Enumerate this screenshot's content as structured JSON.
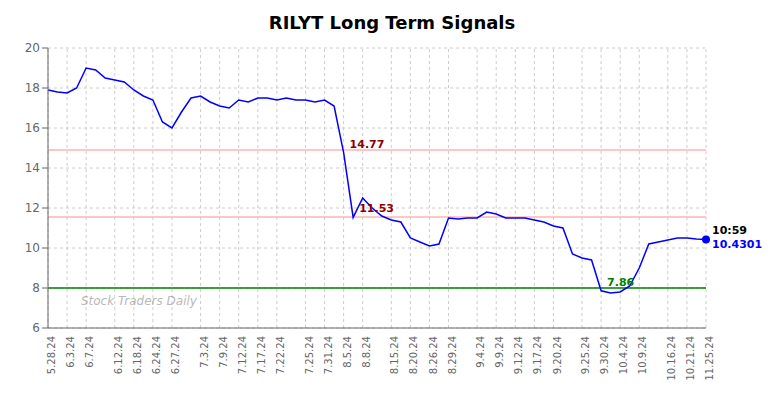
{
  "chart_data": {
    "type": "line",
    "title": "RILYT Long Term Signals",
    "categories": [
      "5.28.24",
      null,
      "6.3.24",
      null,
      "6.7.24",
      null,
      null,
      "6.12.24",
      null,
      "6.18.24",
      null,
      "6.24.24",
      null,
      "6.27.24",
      null,
      null,
      "7.3.24",
      null,
      "7.9.24",
      null,
      "7.12.24",
      null,
      "7.17.24",
      null,
      "7.22.24",
      null,
      null,
      "7.25.24",
      null,
      "7.31.24",
      null,
      "8.5.24",
      null,
      "8.8.24",
      null,
      null,
      "8.15.24",
      null,
      "8.20.24",
      null,
      "8.26.24",
      null,
      "8.29.24",
      null,
      null,
      "9.4.24",
      null,
      "9.9.24",
      null,
      "9.12.24",
      null,
      "9.17.24",
      null,
      "9.20.24",
      null,
      null,
      "9.25.24",
      null,
      "9.30.24",
      null,
      "10.4.24",
      null,
      "10.9.24",
      null,
      null,
      "10.16.24",
      null,
      "10.21.24",
      null,
      "11.25.24"
    ],
    "values": [
      17.9,
      17.8,
      17.75,
      18.0,
      19.0,
      18.9,
      18.5,
      18.4,
      18.3,
      17.9,
      17.6,
      17.4,
      16.3,
      16.0,
      16.8,
      17.5,
      17.6,
      17.3,
      17.1,
      17.0,
      17.4,
      17.3,
      17.5,
      17.5,
      17.4,
      17.5,
      17.4,
      17.4,
      17.3,
      17.4,
      17.1,
      14.77,
      11.53,
      12.5,
      12.0,
      11.6,
      11.4,
      11.3,
      10.5,
      10.3,
      10.1,
      10.2,
      11.5,
      11.45,
      11.5,
      11.5,
      11.8,
      11.7,
      11.5,
      11.5,
      11.5,
      11.4,
      11.3,
      11.1,
      11.0,
      9.7,
      9.5,
      9.4,
      7.86,
      7.75,
      7.8,
      8.1,
      9.0,
      10.2,
      10.3,
      10.4,
      10.5,
      10.5,
      10.45,
      10.4301
    ],
    "color": "blue",
    "ylim": [
      6,
      20
    ],
    "yticks": [
      6,
      8,
      10,
      12,
      14,
      16,
      18,
      20
    ],
    "grid": true,
    "reference_lines": [
      {
        "y": 8.0,
        "color": "green"
      },
      {
        "y": 14.9,
        "color": "#ffb3b3"
      },
      {
        "y": 11.55,
        "color": "#ffb3b3"
      }
    ],
    "annotations": [
      {
        "text": "14.77",
        "x": 31,
        "y": 14.77,
        "color": "#8B0000"
      },
      {
        "text": "11.53",
        "x": 32,
        "y": 11.53,
        "color": "#8B0000"
      },
      {
        "text": "7.86",
        "x": 58,
        "y": 7.86,
        "color": "green"
      },
      {
        "text": "10:59",
        "x": 69,
        "y": 10.4301,
        "color": "black"
      },
      {
        "text": "10.4301",
        "x": 69,
        "y": 10.4301,
        "color": "blue",
        "marker": "circle"
      }
    ],
    "watermark": "Stock Traders Daily"
  }
}
